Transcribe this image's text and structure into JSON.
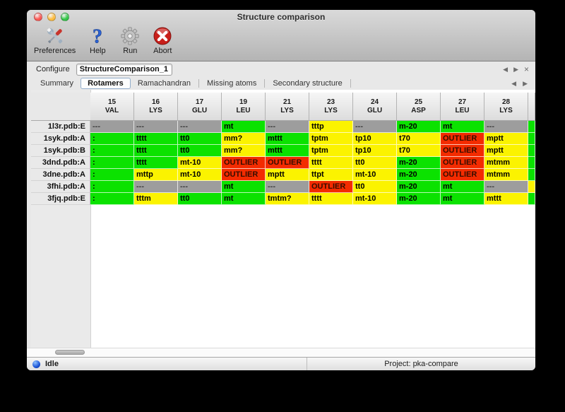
{
  "window": {
    "title": "Structure comparison",
    "traffic_lights": [
      {
        "name": "close",
        "color": "#fc5753"
      },
      {
        "name": "minimize",
        "color": "#fdbc40"
      },
      {
        "name": "zoom",
        "color": "#33c748"
      }
    ]
  },
  "toolbar": {
    "items": [
      {
        "label": "Preferences",
        "icon": "tools-icon"
      },
      {
        "label": "Help",
        "icon": "help-icon"
      },
      {
        "label": "Run",
        "icon": "gear-icon"
      },
      {
        "label": "Abort",
        "icon": "abort-icon"
      }
    ]
  },
  "configure": {
    "label": "Configure",
    "value": "StructureComparison_1",
    "nav_icons": [
      "back-icon",
      "forward-icon",
      "close-icon"
    ]
  },
  "tabs": {
    "items": [
      "Summary",
      "Rotamers",
      "Ramachandran",
      "Missing atoms",
      "Secondary structure"
    ],
    "active": "Rotamers",
    "nav_icons": [
      "back-icon",
      "forward-icon"
    ]
  },
  "colors": {
    "green": "#0be200",
    "yellow": "#fbf300",
    "red": "#f32b00",
    "gray": "#9d9d9d"
  },
  "table": {
    "columns": [
      {
        "num": "15",
        "res": "VAL"
      },
      {
        "num": "16",
        "res": "LYS"
      },
      {
        "num": "17",
        "res": "GLU"
      },
      {
        "num": "19",
        "res": "LEU"
      },
      {
        "num": "21",
        "res": "LYS"
      },
      {
        "num": "23",
        "res": "LYS"
      },
      {
        "num": "24",
        "res": "GLU"
      },
      {
        "num": "25",
        "res": "ASP"
      },
      {
        "num": "27",
        "res": "LEU"
      },
      {
        "num": "28",
        "res": "LYS"
      }
    ],
    "rows": [
      {
        "label": "1l3r.pdb:E",
        "edge": "green",
        "cells": [
          {
            "text": "---",
            "color": "gray"
          },
          {
            "text": "---",
            "color": "gray"
          },
          {
            "text": "---",
            "color": "gray"
          },
          {
            "text": "mt",
            "color": "green"
          },
          {
            "text": "---",
            "color": "gray"
          },
          {
            "text": "tttp",
            "color": "yellow"
          },
          {
            "text": "---",
            "color": "gray"
          },
          {
            "text": "m-20",
            "color": "green"
          },
          {
            "text": "mt",
            "color": "green"
          },
          {
            "text": "---",
            "color": "gray"
          }
        ]
      },
      {
        "label": "1syk.pdb:A",
        "edge": "green",
        "cells": [
          {
            "text": ":",
            "color": "green"
          },
          {
            "text": "tttt",
            "color": "green"
          },
          {
            "text": "tt0",
            "color": "green"
          },
          {
            "text": "mm?",
            "color": "yellow"
          },
          {
            "text": "mttt",
            "color": "green"
          },
          {
            "text": "tptm",
            "color": "yellow"
          },
          {
            "text": "tp10",
            "color": "yellow"
          },
          {
            "text": "t70",
            "color": "yellow"
          },
          {
            "text": "OUTLIER",
            "color": "red"
          },
          {
            "text": "mptt",
            "color": "yellow"
          }
        ]
      },
      {
        "label": "1syk.pdb:B",
        "edge": "green",
        "cells": [
          {
            "text": ":",
            "color": "green"
          },
          {
            "text": "tttt",
            "color": "green"
          },
          {
            "text": "tt0",
            "color": "green"
          },
          {
            "text": "mm?",
            "color": "yellow"
          },
          {
            "text": "mttt",
            "color": "green"
          },
          {
            "text": "tptm",
            "color": "yellow"
          },
          {
            "text": "tp10",
            "color": "yellow"
          },
          {
            "text": "t70",
            "color": "yellow"
          },
          {
            "text": "OUTLIER",
            "color": "red"
          },
          {
            "text": "mptt",
            "color": "yellow"
          }
        ]
      },
      {
        "label": "3dnd.pdb:A",
        "edge": "green",
        "cells": [
          {
            "text": ":",
            "color": "green"
          },
          {
            "text": "tttt",
            "color": "green"
          },
          {
            "text": "mt-10",
            "color": "yellow"
          },
          {
            "text": "OUTLIER",
            "color": "red"
          },
          {
            "text": "OUTLIER",
            "color": "red"
          },
          {
            "text": "tttt",
            "color": "yellow"
          },
          {
            "text": "tt0",
            "color": "yellow"
          },
          {
            "text": "m-20",
            "color": "green"
          },
          {
            "text": "OUTLIER",
            "color": "red"
          },
          {
            "text": "mtmm",
            "color": "yellow"
          }
        ]
      },
      {
        "label": "3dne.pdb:A",
        "edge": "green",
        "cells": [
          {
            "text": ":",
            "color": "green"
          },
          {
            "text": "mttp",
            "color": "yellow"
          },
          {
            "text": "mt-10",
            "color": "yellow"
          },
          {
            "text": "OUTLIER",
            "color": "red"
          },
          {
            "text": "mptt",
            "color": "yellow"
          },
          {
            "text": "ttpt",
            "color": "yellow"
          },
          {
            "text": "mt-10",
            "color": "yellow"
          },
          {
            "text": "m-20",
            "color": "green"
          },
          {
            "text": "OUTLIER",
            "color": "red"
          },
          {
            "text": "mtmm",
            "color": "yellow"
          }
        ]
      },
      {
        "label": "3fhi.pdb:A",
        "edge": "yellow",
        "cells": [
          {
            "text": ":",
            "color": "green"
          },
          {
            "text": "---",
            "color": "gray"
          },
          {
            "text": "---",
            "color": "gray"
          },
          {
            "text": "mt",
            "color": "green"
          },
          {
            "text": "---",
            "color": "gray"
          },
          {
            "text": "OUTLIER",
            "color": "red"
          },
          {
            "text": "tt0",
            "color": "yellow"
          },
          {
            "text": "m-20",
            "color": "green"
          },
          {
            "text": "mt",
            "color": "green"
          },
          {
            "text": "---",
            "color": "gray"
          }
        ]
      },
      {
        "label": "3fjq.pdb:E",
        "edge": "green",
        "cells": [
          {
            "text": ":",
            "color": "green"
          },
          {
            "text": "tttm",
            "color": "yellow"
          },
          {
            "text": "tt0",
            "color": "green"
          },
          {
            "text": "mt",
            "color": "green"
          },
          {
            "text": "tmtm?",
            "color": "yellow"
          },
          {
            "text": "tttt",
            "color": "yellow"
          },
          {
            "text": "mt-10",
            "color": "yellow"
          },
          {
            "text": "m-20",
            "color": "green"
          },
          {
            "text": "mt",
            "color": "green"
          },
          {
            "text": "mttt",
            "color": "yellow"
          }
        ]
      }
    ]
  },
  "statusbar": {
    "status_icon": "status-ball-icon",
    "status": "Idle",
    "project": "Project: pka-compare"
  }
}
